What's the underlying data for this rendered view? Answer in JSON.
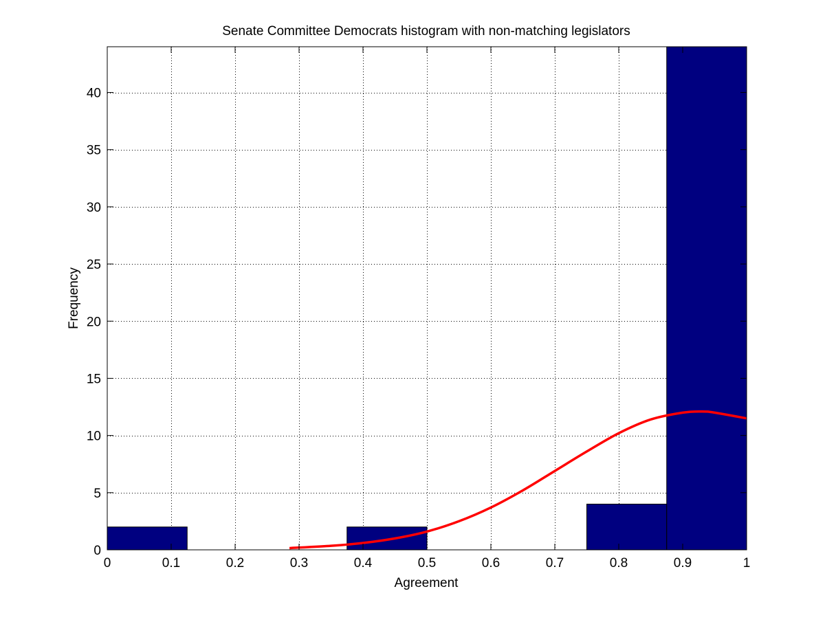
{
  "chart_data": {
    "type": "bar",
    "title": "Senate Committee Democrats histogram with non-matching legislators",
    "xlabel": "Agreement",
    "ylabel": "Frequency",
    "xlim": [
      0,
      1
    ],
    "ylim": [
      0,
      44
    ],
    "grid": true,
    "legend": "none",
    "xticks": [
      0,
      0.1,
      0.2,
      0.3,
      0.4,
      0.5,
      0.6,
      0.7,
      0.8,
      0.9,
      1
    ],
    "xtick_labels": [
      "0",
      "0.1",
      "0.2",
      "0.3",
      "0.4",
      "0.5",
      "0.6",
      "0.7",
      "0.8",
      "0.9",
      "1"
    ],
    "yticks": [
      0,
      5,
      10,
      15,
      20,
      25,
      30,
      35,
      40
    ],
    "ytick_labels": [
      "0",
      "5",
      "10",
      "15",
      "20",
      "25",
      "30",
      "35",
      "40"
    ],
    "bins": [
      {
        "x0": 0.0,
        "x1": 0.125,
        "count": 2
      },
      {
        "x0": 0.125,
        "x1": 0.25,
        "count": 0
      },
      {
        "x0": 0.25,
        "x1": 0.375,
        "count": 0
      },
      {
        "x0": 0.375,
        "x1": 0.5,
        "count": 2
      },
      {
        "x0": 0.5,
        "x1": 0.625,
        "count": 0
      },
      {
        "x0": 0.625,
        "x1": 0.75,
        "count": 0
      },
      {
        "x0": 0.75,
        "x1": 0.875,
        "count": 4
      },
      {
        "x0": 0.875,
        "x1": 1.0,
        "count": 44
      }
    ],
    "fit_curve": {
      "x": [
        0.285,
        0.3,
        0.35,
        0.4,
        0.45,
        0.5,
        0.55,
        0.6,
        0.65,
        0.7,
        0.75,
        0.8,
        0.85,
        0.9,
        0.93,
        0.95,
        1.0
      ],
      "y": [
        0.15,
        0.2,
        0.35,
        0.6,
        1.0,
        1.6,
        2.5,
        3.7,
        5.2,
        6.9,
        8.6,
        10.2,
        11.4,
        12.0,
        12.1,
        12.0,
        11.5
      ]
    },
    "colors": {
      "bar_fill": "#000080",
      "bar_edge": "#000000",
      "curve": "#ff0000",
      "grid": "#000000"
    }
  }
}
